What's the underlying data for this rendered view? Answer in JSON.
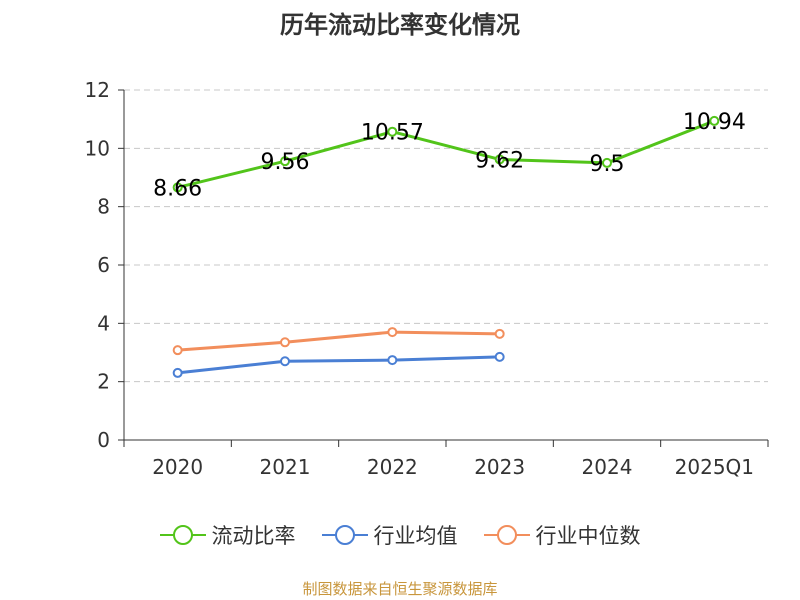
{
  "title": "历年流动比率变化情况",
  "source": "制图数据来自恒生聚源数据库",
  "chart_data": {
    "type": "line",
    "categories": [
      "2020",
      "2021",
      "2022",
      "2023",
      "2024",
      "2025Q1"
    ],
    "ylim": [
      0,
      12
    ],
    "yticks": [
      0,
      2,
      4,
      6,
      8,
      10,
      12
    ],
    "grid": true,
    "legend_position": "bottom",
    "series": [
      {
        "name": "流动比率",
        "color": "#52c41a",
        "values": [
          8.66,
          9.56,
          10.57,
          9.62,
          9.5,
          10.94
        ],
        "labels": [
          "8.66",
          "9.56",
          "10.57",
          "9.62",
          "9.5",
          "10.94"
        ]
      },
      {
        "name": "行业均值",
        "color": "#4a7fd4",
        "values": [
          2.3,
          2.7,
          2.74,
          2.85,
          null,
          null
        ]
      },
      {
        "name": "行业中位数",
        "color": "#f28e5c",
        "values": [
          3.08,
          3.35,
          3.7,
          3.64,
          null,
          null
        ]
      }
    ]
  }
}
